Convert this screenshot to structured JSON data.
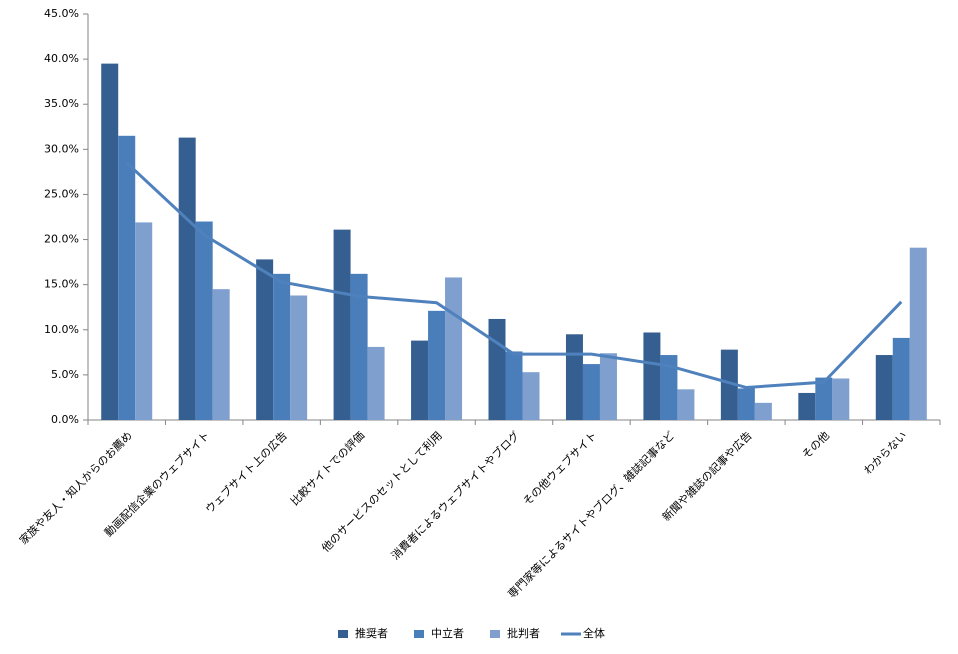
{
  "chart_data": {
    "type": "bar",
    "categories": [
      "家族や友人・知人からのお薦め",
      "動画配信企業のウェブサイト",
      "ウェブサイト上の広告",
      "比較サイトでの評価",
      "他のサービスのセットとして利用",
      "消費者によるウェブサイトやブログ",
      "その他ウェブサイト",
      "専門家等によるサイトやブログ、雑誌記事など",
      "新聞や雑誌の記事や広告",
      "その他",
      "わからない"
    ],
    "series": [
      {
        "name": "推奨者",
        "color": "#365f91",
        "values": [
          39.5,
          31.3,
          17.8,
          21.1,
          8.8,
          11.2,
          9.5,
          9.7,
          7.8,
          3.0,
          7.2
        ]
      },
      {
        "name": "中立者",
        "color": "#4a7ebb",
        "values": [
          31.5,
          22.0,
          16.2,
          16.2,
          12.1,
          7.6,
          6.2,
          7.2,
          3.5,
          4.7,
          9.1
        ]
      },
      {
        "name": "批判者",
        "color": "#7f9fcf",
        "values": [
          21.9,
          14.5,
          13.8,
          8.1,
          15.8,
          5.3,
          7.4,
          3.4,
          1.9,
          4.6,
          19.1
        ]
      },
      {
        "name": "全体",
        "color": "#4f81bd",
        "type": "line",
        "values": [
          28.5,
          20.5,
          15.3,
          13.7,
          13.0,
          7.3,
          7.3,
          6.0,
          3.6,
          4.2,
          13.1
        ]
      }
    ],
    "ylim": [
      0,
      45
    ],
    "yticks": [
      {
        "value": 0,
        "label": "0.0%"
      },
      {
        "value": 5,
        "label": "5.0%"
      },
      {
        "value": 10,
        "label": "10.0%"
      },
      {
        "value": 15,
        "label": "15.0%"
      },
      {
        "value": 20,
        "label": "20.0%"
      },
      {
        "value": 25,
        "label": "25.0%"
      },
      {
        "value": 30,
        "label": "30.0%"
      },
      {
        "value": 35,
        "label": "35.0%"
      },
      {
        "value": 40,
        "label": "40.0%"
      },
      {
        "value": 45,
        "label": "45.0%"
      }
    ],
    "legend": "bottom"
  }
}
